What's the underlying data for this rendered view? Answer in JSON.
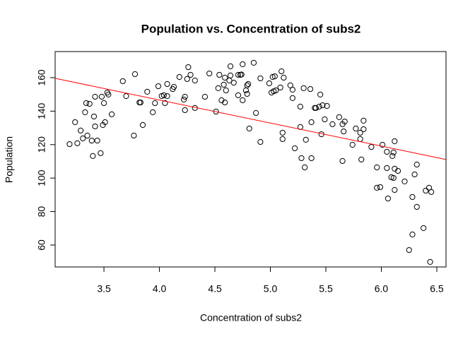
{
  "chart_data": {
    "type": "scatter",
    "title": "Population vs. Concentration of subs2",
    "xlabel": "Concentration of subs2",
    "ylabel": "Population",
    "xlim": [
      3.06,
      6.583
    ],
    "ylim": [
      46.9,
      175.6
    ],
    "xticks": [
      3.5,
      {
        "value": 4,
        "label": "4.0"
      },
      4.5,
      {
        "value": 5,
        "label": "5.0"
      },
      5.5,
      {
        "value": 6,
        "label": "6.0"
      },
      6.5
    ],
    "yticks": [
      60,
      80,
      100,
      120,
      140,
      160
    ],
    "grid": false,
    "points": {
      "color": "#000000",
      "x": [
        3.19,
        3.26,
        3.24,
        3.29,
        3.31,
        3.33,
        3.34,
        3.37,
        3.35,
        3.39,
        3.41,
        3.42,
        3.42,
        3.4,
        3.44,
        3.48,
        3.5,
        3.49,
        3.47,
        3.51,
        3.53,
        3.54,
        3.57,
        3.67,
        3.7,
        3.78,
        3.77,
        3.82,
        3.83,
        3.85,
        3.89,
        3.94,
        3.96,
        3.99,
        4.02,
        4.04,
        4.05,
        4.07,
        4.07,
        4.12,
        4.13,
        4.18,
        4.22,
        4.23,
        4.23,
        4.25,
        4.26,
        4.28,
        4.32,
        4.32,
        4.41,
        4.45,
        4.51,
        4.53,
        4.54,
        4.56,
        4.58,
        4.59,
        4.59,
        4.6,
        4.63,
        4.64,
        4.64,
        4.67,
        4.71,
        4.71,
        4.73,
        4.74,
        4.75,
        4.75,
        4.78,
        4.79,
        4.79,
        4.8,
        4.81,
        4.85,
        4.87,
        4.91,
        4.91,
        4.99,
        5.01,
        5.02,
        5.03,
        5.04,
        5.05,
        5.09,
        5.1,
        5.11,
        5.11,
        5.12,
        5.18,
        5.2,
        5.2,
        5.22,
        5.27,
        5.27,
        5.28,
        5.3,
        5.31,
        5.32,
        5.36,
        5.37,
        5.37,
        5.4,
        5.41,
        5.44,
        5.45,
        5.46,
        5.47,
        5.49,
        5.51,
        5.56,
        5.62,
        5.65,
        5.65,
        5.66,
        5.67,
        5.74,
        5.77,
        5.81,
        5.81,
        5.82,
        5.84,
        5.84,
        5.91,
        5.96,
        5.96,
        5.99,
        6.01,
        6.05,
        6.05,
        6.06,
        6.09,
        6.1,
        6.11,
        6.12,
        6.12,
        6.11,
        6.12,
        6.15,
        6.21,
        6.25,
        6.28,
        6.28,
        6.3,
        6.32,
        6.32,
        6.38,
        6.4,
        6.43,
        6.45,
        6.44
      ],
      "y": [
        120.3,
        120.8,
        133.4,
        128.4,
        123.7,
        139.3,
        144.8,
        144.4,
        125.4,
        122.4,
        136.8,
        130.9,
        148.6,
        113.2,
        122.4,
        148.6,
        144.8,
        131.7,
        114.9,
        133.4,
        151.1,
        149.9,
        138.1,
        157.9,
        149.0,
        162.1,
        125.4,
        145.2,
        145.2,
        131.7,
        151.6,
        139.3,
        144.8,
        154.9,
        149.0,
        149.5,
        144.8,
        149.0,
        156.2,
        153.2,
        154.5,
        160.4,
        146.9,
        148.6,
        140.6,
        159.2,
        166.3,
        161.7,
        158.3,
        141.9,
        148.6,
        162.5,
        139.7,
        153.7,
        161.7,
        146.5,
        155.8,
        145.2,
        160.0,
        152.4,
        158.3,
        161.3,
        166.8,
        157.0,
        161.7,
        149.5,
        161.7,
        161.9,
        168.0,
        146.5,
        152.4,
        150.3,
        155.4,
        156.2,
        129.6,
        168.9,
        138.9,
        159.6,
        121.6,
        156.6,
        151.1,
        160.4,
        151.9,
        160.8,
        152.4,
        154.1,
        163.8,
        127.1,
        123.3,
        160.0,
        155.4,
        152.8,
        147.8,
        117.8,
        142.7,
        130.5,
        111.9,
        153.7,
        106.4,
        122.9,
        153.2,
        111.9,
        133.4,
        141.9,
        141.9,
        142.7,
        149.9,
        126.2,
        143.5,
        135.1,
        143.1,
        132.2,
        136.4,
        132.2,
        110.2,
        127.9,
        133.8,
        119.9,
        129.6,
        127.1,
        123.3,
        111.1,
        134.3,
        129.2,
        118.6,
        106.4,
        94.2,
        94.6,
        119.9,
        115.7,
        106.0,
        87.8,
        100.5,
        113.2,
        115.3,
        105.6,
        122.0,
        100.1,
        92.9,
        104.3,
        98.0,
        57.0,
        66.3,
        88.7,
        102.2,
        108.1,
        82.8,
        70.1,
        92.5,
        94.2,
        91.7,
        49.9
      ]
    },
    "fit_line": {
      "color": "#ff0000",
      "x": [
        3.06,
        6.583
      ],
      "y": [
        159.6,
        111.1
      ]
    }
  }
}
